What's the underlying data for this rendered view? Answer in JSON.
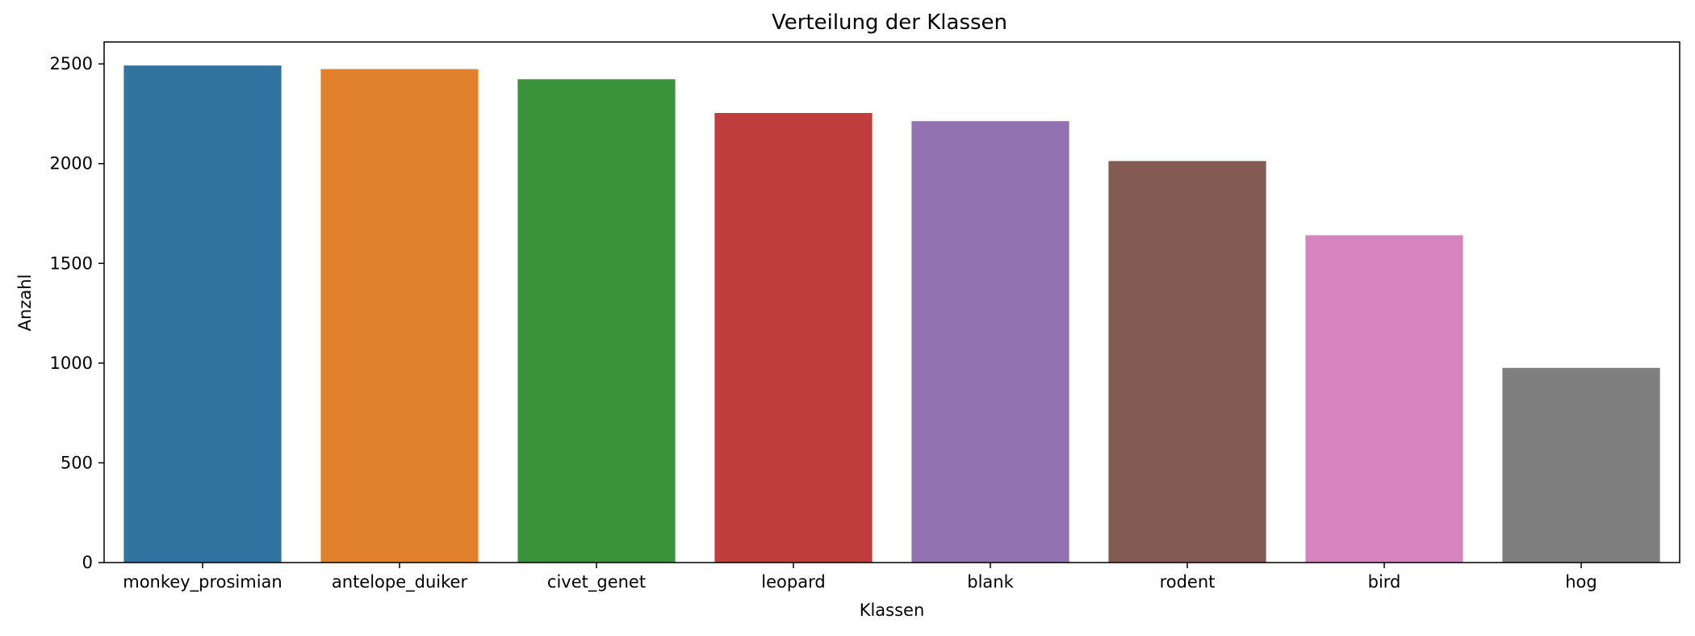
{
  "chart_data": {
    "type": "bar",
    "title": "Verteilung der Klassen",
    "xlabel": "Klassen",
    "ylabel": "Anzahl",
    "categories": [
      "monkey_prosimian",
      "antelope_duiker",
      "civet_genet",
      "leopard",
      "blank",
      "rodent",
      "bird",
      "hog"
    ],
    "values": [
      2492,
      2474,
      2423,
      2254,
      2213,
      2013,
      1641,
      976
    ],
    "colors": [
      "#3274a1",
      "#e1812c",
      "#3a923a",
      "#c03d3e",
      "#9372b2",
      "#845b53",
      "#d684bd",
      "#7f7f7f"
    ],
    "ylim": [
      0,
      2610
    ],
    "yticks": [
      0,
      500,
      1000,
      1500,
      2000,
      2500
    ],
    "grid": false,
    "legend": "none"
  }
}
